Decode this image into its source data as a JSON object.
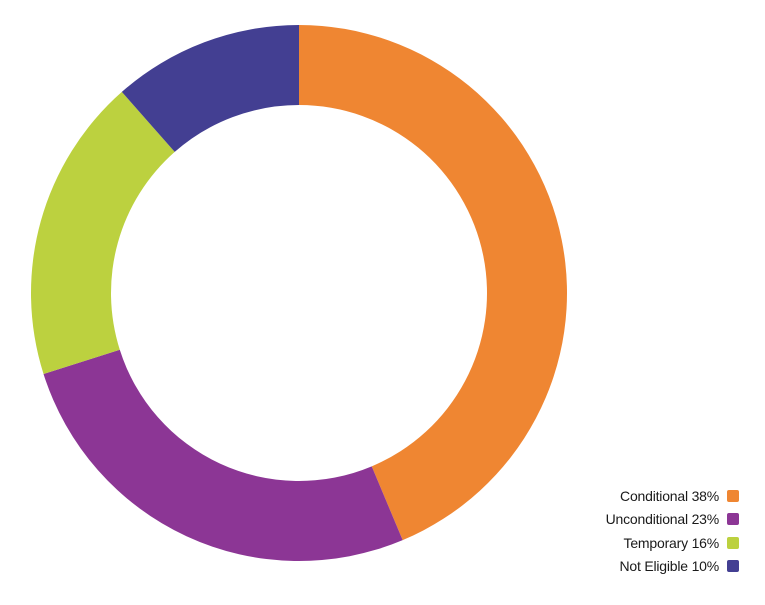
{
  "chart_data": {
    "type": "pie",
    "variant": "donut",
    "title": "",
    "categories": [
      "Conditional",
      "Unconditional",
      "Temporary",
      "Not Eligible"
    ],
    "values": [
      38,
      23,
      16,
      10
    ],
    "unit": "%",
    "colors": [
      "#EF8632",
      "#8C3695",
      "#BCD13F",
      "#433F92"
    ],
    "legend_position": "bottom-right",
    "start_angle_deg": 0,
    "direction": "clockwise"
  },
  "legend": {
    "items": [
      {
        "label": "Conditional 38%",
        "color": "#EF8632"
      },
      {
        "label": "Unconditional 23%",
        "color": "#8C3695"
      },
      {
        "label": "Temporary 16%",
        "color": "#BCD13F"
      },
      {
        "label": "Not Eligible 10%",
        "color": "#433F92"
      }
    ]
  }
}
